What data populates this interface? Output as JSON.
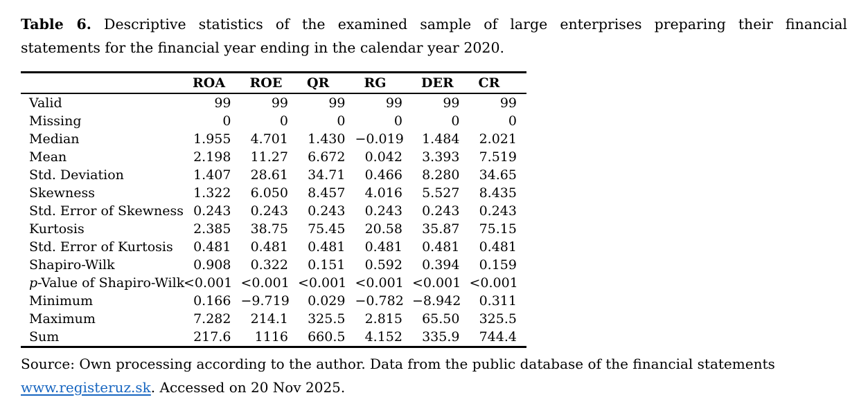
{
  "caption": {
    "bold_label": "Table 6.",
    "line1_rest": "Descriptive statistics of the examined sample of large enterprises preparing their financial",
    "line2": "statements for the financial year ending in the calendar year 2020."
  },
  "table": {
    "columns": [
      "ROA",
      "ROE",
      "QR",
      "RG",
      "DER",
      "CR"
    ],
    "rows": [
      {
        "label": "Valid",
        "values": [
          "99",
          "99",
          "99",
          "99",
          "99",
          "99"
        ]
      },
      {
        "label": "Missing",
        "values": [
          "0",
          "0",
          "0",
          "0",
          "0",
          "0"
        ]
      },
      {
        "label": "Median",
        "values": [
          "1.955",
          "4.701",
          "1.430",
          "−0.019",
          "1.484",
          "2.021"
        ]
      },
      {
        "label": "Mean",
        "values": [
          "2.198",
          "11.27",
          "6.672",
          "0.042",
          "3.393",
          "7.519"
        ]
      },
      {
        "label": "Std. Deviation",
        "values": [
          "1.407",
          "28.61",
          "34.71",
          "0.466",
          "8.280",
          "34.65"
        ]
      },
      {
        "label": "Skewness",
        "values": [
          "1.322",
          "6.050",
          "8.457",
          "4.016",
          "5.527",
          "8.435"
        ]
      },
      {
        "label": "Std. Error of Skewness",
        "values": [
          "0.243",
          "0.243",
          "0.243",
          "0.243",
          "0.243",
          "0.243"
        ]
      },
      {
        "label": "Kurtosis",
        "values": [
          "2.385",
          "38.75",
          "75.45",
          "20.58",
          "35.87",
          "75.15"
        ]
      },
      {
        "label": "Std. Error of Kurtosis",
        "values": [
          "0.481",
          "0.481",
          "0.481",
          "0.481",
          "0.481",
          "0.481"
        ]
      },
      {
        "label": "Shapiro-Wilk",
        "values": [
          "0.908",
          "0.322",
          "0.151",
          "0.592",
          "0.394",
          "0.159"
        ]
      },
      {
        "label": "p-Value of Shapiro-Wilk",
        "label_parts": [
          {
            "text": "p",
            "italic": true
          },
          {
            "text": "-Value of Shapiro-Wilk",
            "italic": false
          }
        ],
        "values": [
          "<0.001",
          "<0.001",
          "<0.001",
          "<0.001",
          "<0.001",
          "<0.001"
        ]
      },
      {
        "label": "Minimum",
        "values": [
          "0.166",
          "−9.719",
          "0.029",
          "−0.782",
          "−8.942",
          "0.311"
        ]
      },
      {
        "label": "Maximum",
        "values": [
          "7.282",
          "214.1",
          "325.5",
          "2.815",
          "65.50",
          "325.5"
        ]
      },
      {
        "label": "Sum",
        "values": [
          "217.6",
          "1116",
          "660.5",
          "4.152",
          "335.9",
          "744.4"
        ]
      }
    ]
  },
  "source": {
    "line1": "Source: Own processing according to the author. Data from the public database of the financial statements",
    "link_text": "www.registeruz.sk",
    "after_link": ". Accessed on 20 Nov 2025.",
    "link_color": "#1665C0"
  }
}
